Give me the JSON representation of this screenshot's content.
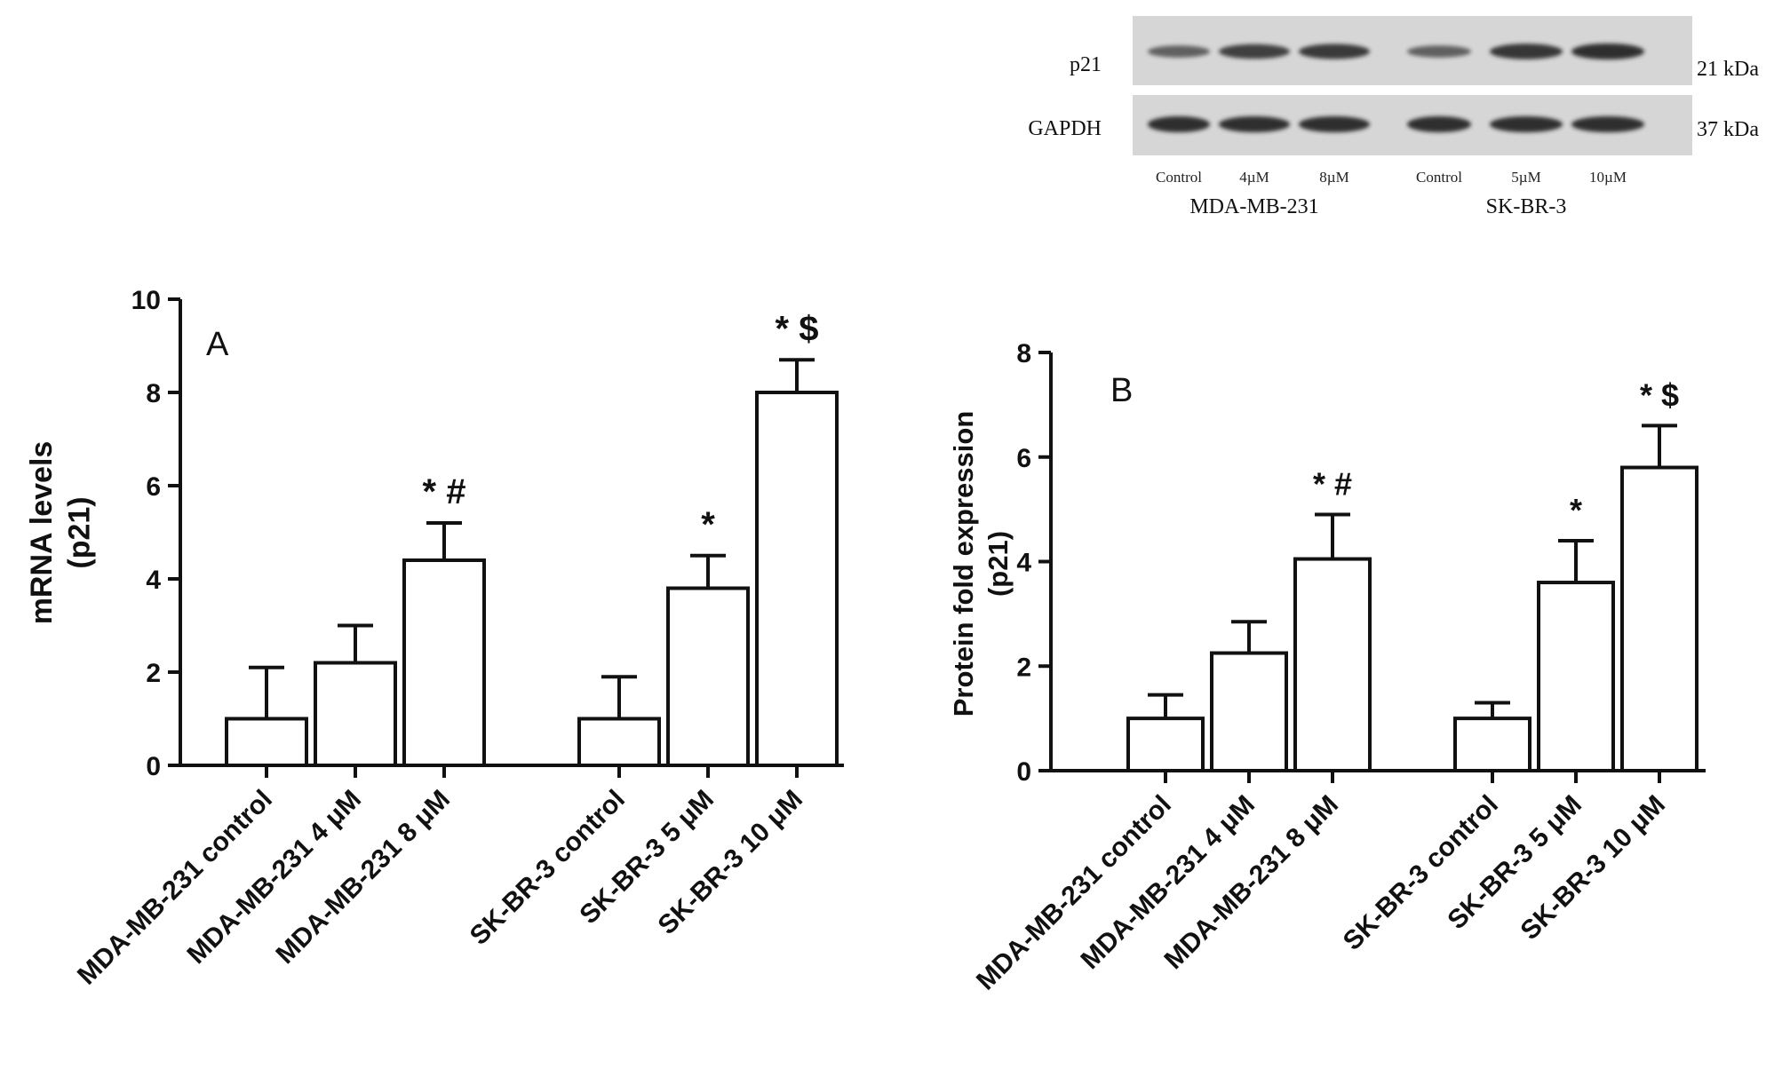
{
  "blot": {
    "rows": [
      {
        "label": "p21",
        "size": "21 kDa",
        "intensities": [
          0.55,
          0.85,
          0.9,
          0.55,
          0.95,
          1.0
        ]
      },
      {
        "label": "GAPDH",
        "size": "37 kDa",
        "intensities": [
          1.0,
          1.0,
          1.0,
          1.0,
          1.0,
          1.0
        ]
      }
    ],
    "lanes": [
      "Control",
      "4µM",
      "8µM",
      "Control",
      "5µM",
      "10µM"
    ],
    "groups": [
      "MDA-MB-231",
      "SK-BR-3"
    ]
  },
  "chart_data": [
    {
      "type": "bar",
      "panel_label": "A",
      "ylabel": [
        "mRNA levels",
        "(p21)"
      ],
      "ylim": [
        0,
        10
      ],
      "yticks": [
        0,
        2,
        4,
        6,
        8,
        10
      ],
      "categories": [
        "MDA-MB-231 control",
        "MDA-MB-231 4 μM",
        "MDA-MB-231 8 μM",
        "SK-BR-3 control",
        "SK-BR-3 5 μM",
        "SK-BR-3 10 μM"
      ],
      "values": [
        1.0,
        2.2,
        4.4,
        1.0,
        3.8,
        8.0
      ],
      "errors": [
        1.1,
        0.8,
        0.8,
        0.9,
        0.7,
        0.7
      ],
      "annotations": [
        "",
        "",
        "* #",
        "",
        "*",
        "* $"
      ]
    },
    {
      "type": "bar",
      "panel_label": "B",
      "ylabel": [
        "Protein fold expression",
        "(p21)"
      ],
      "ylim": [
        0,
        8
      ],
      "yticks": [
        0,
        2,
        4,
        6,
        8
      ],
      "categories": [
        "MDA-MB-231 control",
        "MDA-MB-231 4 μM",
        "MDA-MB-231 8 μM",
        "SK-BR-3 control",
        "SK-BR-3 5 μM",
        "SK-BR-3 10 μM"
      ],
      "values": [
        1.0,
        2.25,
        4.05,
        1.0,
        3.6,
        5.8
      ],
      "errors": [
        0.45,
        0.6,
        0.85,
        0.3,
        0.8,
        0.8
      ],
      "annotations": [
        "",
        "",
        "* #",
        "",
        "*",
        "* $"
      ]
    }
  ]
}
